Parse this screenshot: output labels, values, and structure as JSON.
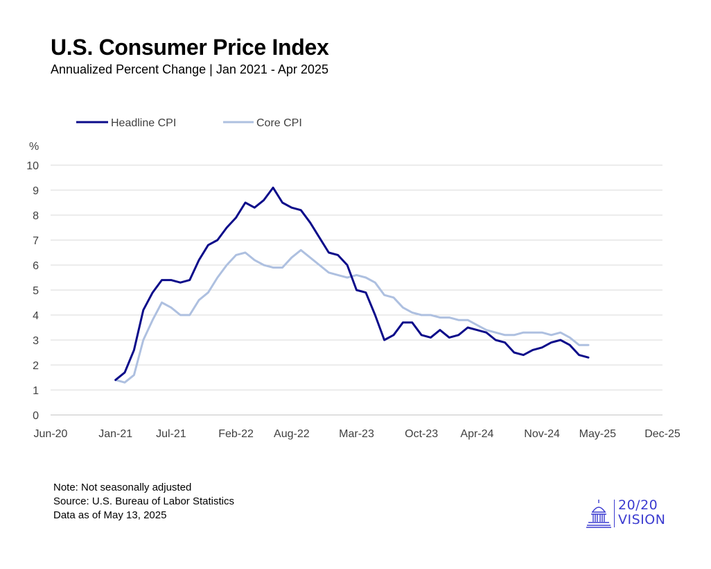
{
  "header": {
    "title": "U.S. Consumer Price Index",
    "subtitle": "Annualized Percent Change | Jan 2021 - Apr 2025"
  },
  "notes": {
    "line1": "Note: Not seasonally adjusted",
    "line2": "Source: U.S. Bureau of Labor Statistics",
    "line3": "Data as of May 13, 2025"
  },
  "logo": {
    "line1": "20/20",
    "line2": "VISION",
    "icon": "capitol-dome-icon",
    "color": "#3b3bd0"
  },
  "chart_data": {
    "type": "line",
    "title": "U.S. Consumer Price Index",
    "subtitle": "Annualized Percent Change | Jan 2021 - Apr 2025",
    "ylabel": "%",
    "xlabel": "",
    "ylim": [
      0,
      10
    ],
    "yticks": [
      0,
      1,
      2,
      3,
      4,
      5,
      6,
      7,
      8,
      9,
      10
    ],
    "xlim": [
      "2020-06",
      "2025-12"
    ],
    "xticks": [
      "2020-06",
      "2021-01",
      "2021-07",
      "2022-02",
      "2022-08",
      "2023-03",
      "2023-10",
      "2024-04",
      "2024-11",
      "2025-05",
      "2025-12"
    ],
    "xtick_labels": [
      "Jun-20",
      "Jan-21",
      "Jul-21",
      "Feb-22",
      "Aug-22",
      "Mar-23",
      "Oct-23",
      "Apr-24",
      "Nov-24",
      "May-25",
      "Dec-25"
    ],
    "grid": "horizontal",
    "legend_position": "top-left",
    "x": [
      "2021-01",
      "2021-02",
      "2021-03",
      "2021-04",
      "2021-05",
      "2021-06",
      "2021-07",
      "2021-08",
      "2021-09",
      "2021-10",
      "2021-11",
      "2021-12",
      "2022-01",
      "2022-02",
      "2022-03",
      "2022-04",
      "2022-05",
      "2022-06",
      "2022-07",
      "2022-08",
      "2022-09",
      "2022-10",
      "2022-11",
      "2022-12",
      "2023-01",
      "2023-02",
      "2023-03",
      "2023-04",
      "2023-05",
      "2023-06",
      "2023-07",
      "2023-08",
      "2023-09",
      "2023-10",
      "2023-11",
      "2023-12",
      "2024-01",
      "2024-02",
      "2024-03",
      "2024-04",
      "2024-05",
      "2024-06",
      "2024-07",
      "2024-08",
      "2024-09",
      "2024-10",
      "2024-11",
      "2024-12",
      "2025-01",
      "2025-02",
      "2025-03",
      "2025-04"
    ],
    "series": [
      {
        "name": "Headline CPI",
        "color": "#0b0b8a",
        "values": [
          1.4,
          1.7,
          2.6,
          4.2,
          4.9,
          5.4,
          5.4,
          5.3,
          5.4,
          6.2,
          6.8,
          7.0,
          7.5,
          7.9,
          8.5,
          8.3,
          8.6,
          9.1,
          8.5,
          8.3,
          8.2,
          7.7,
          7.1,
          6.5,
          6.4,
          6.0,
          5.0,
          4.9,
          4.0,
          3.0,
          3.2,
          3.7,
          3.7,
          3.2,
          3.1,
          3.4,
          3.1,
          3.2,
          3.5,
          3.4,
          3.3,
          3.0,
          2.9,
          2.5,
          2.4,
          2.6,
          2.7,
          2.9,
          3.0,
          2.8,
          2.4,
          2.3
        ]
      },
      {
        "name": "Core CPI",
        "color": "#aec0e0",
        "values": [
          1.4,
          1.3,
          1.6,
          3.0,
          3.8,
          4.5,
          4.3,
          4.0,
          4.0,
          4.6,
          4.9,
          5.5,
          6.0,
          6.4,
          6.5,
          6.2,
          6.0,
          5.9,
          5.9,
          6.3,
          6.6,
          6.3,
          6.0,
          5.7,
          5.6,
          5.5,
          5.6,
          5.5,
          5.3,
          4.8,
          4.7,
          4.3,
          4.1,
          4.0,
          4.0,
          3.9,
          3.9,
          3.8,
          3.8,
          3.6,
          3.4,
          3.3,
          3.2,
          3.2,
          3.3,
          3.3,
          3.3,
          3.2,
          3.3,
          3.1,
          2.8,
          2.8
        ]
      }
    ]
  }
}
